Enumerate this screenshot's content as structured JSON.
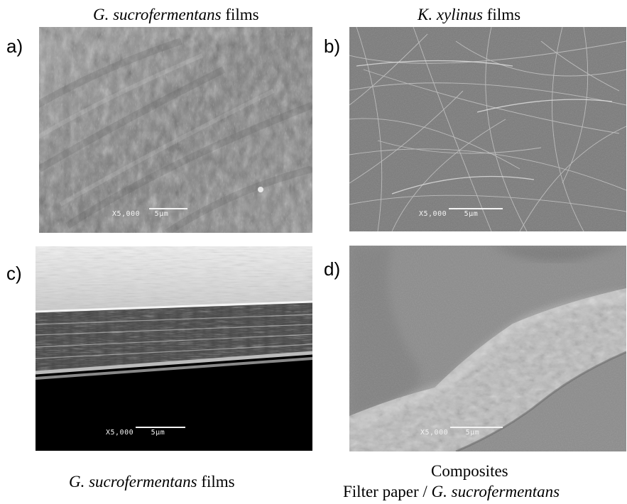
{
  "captions": {
    "top_left": {
      "italic": "G. sucrofermentans",
      "plain": " films"
    },
    "top_right": {
      "italic": "K. xylinus",
      "plain": " films"
    },
    "bottom_left": {
      "italic": "G. sucrofermentans",
      "plain": " films"
    },
    "bottom_right_line1": "Composites",
    "bottom_right_line2": {
      "plain": "Filter paper / ",
      "italic": "G. sucrofermentans"
    }
  },
  "panels": [
    {
      "letter": "a)",
      "magnification": "X5,000",
      "scale": "5µm"
    },
    {
      "letter": "b)",
      "magnification": "X5,000",
      "scale": "5µm"
    },
    {
      "letter": "c)",
      "magnification": "X5,000",
      "scale": "5µm"
    },
    {
      "letter": "d)",
      "magnification": "X5,000",
      "scale": "5µm"
    }
  ]
}
